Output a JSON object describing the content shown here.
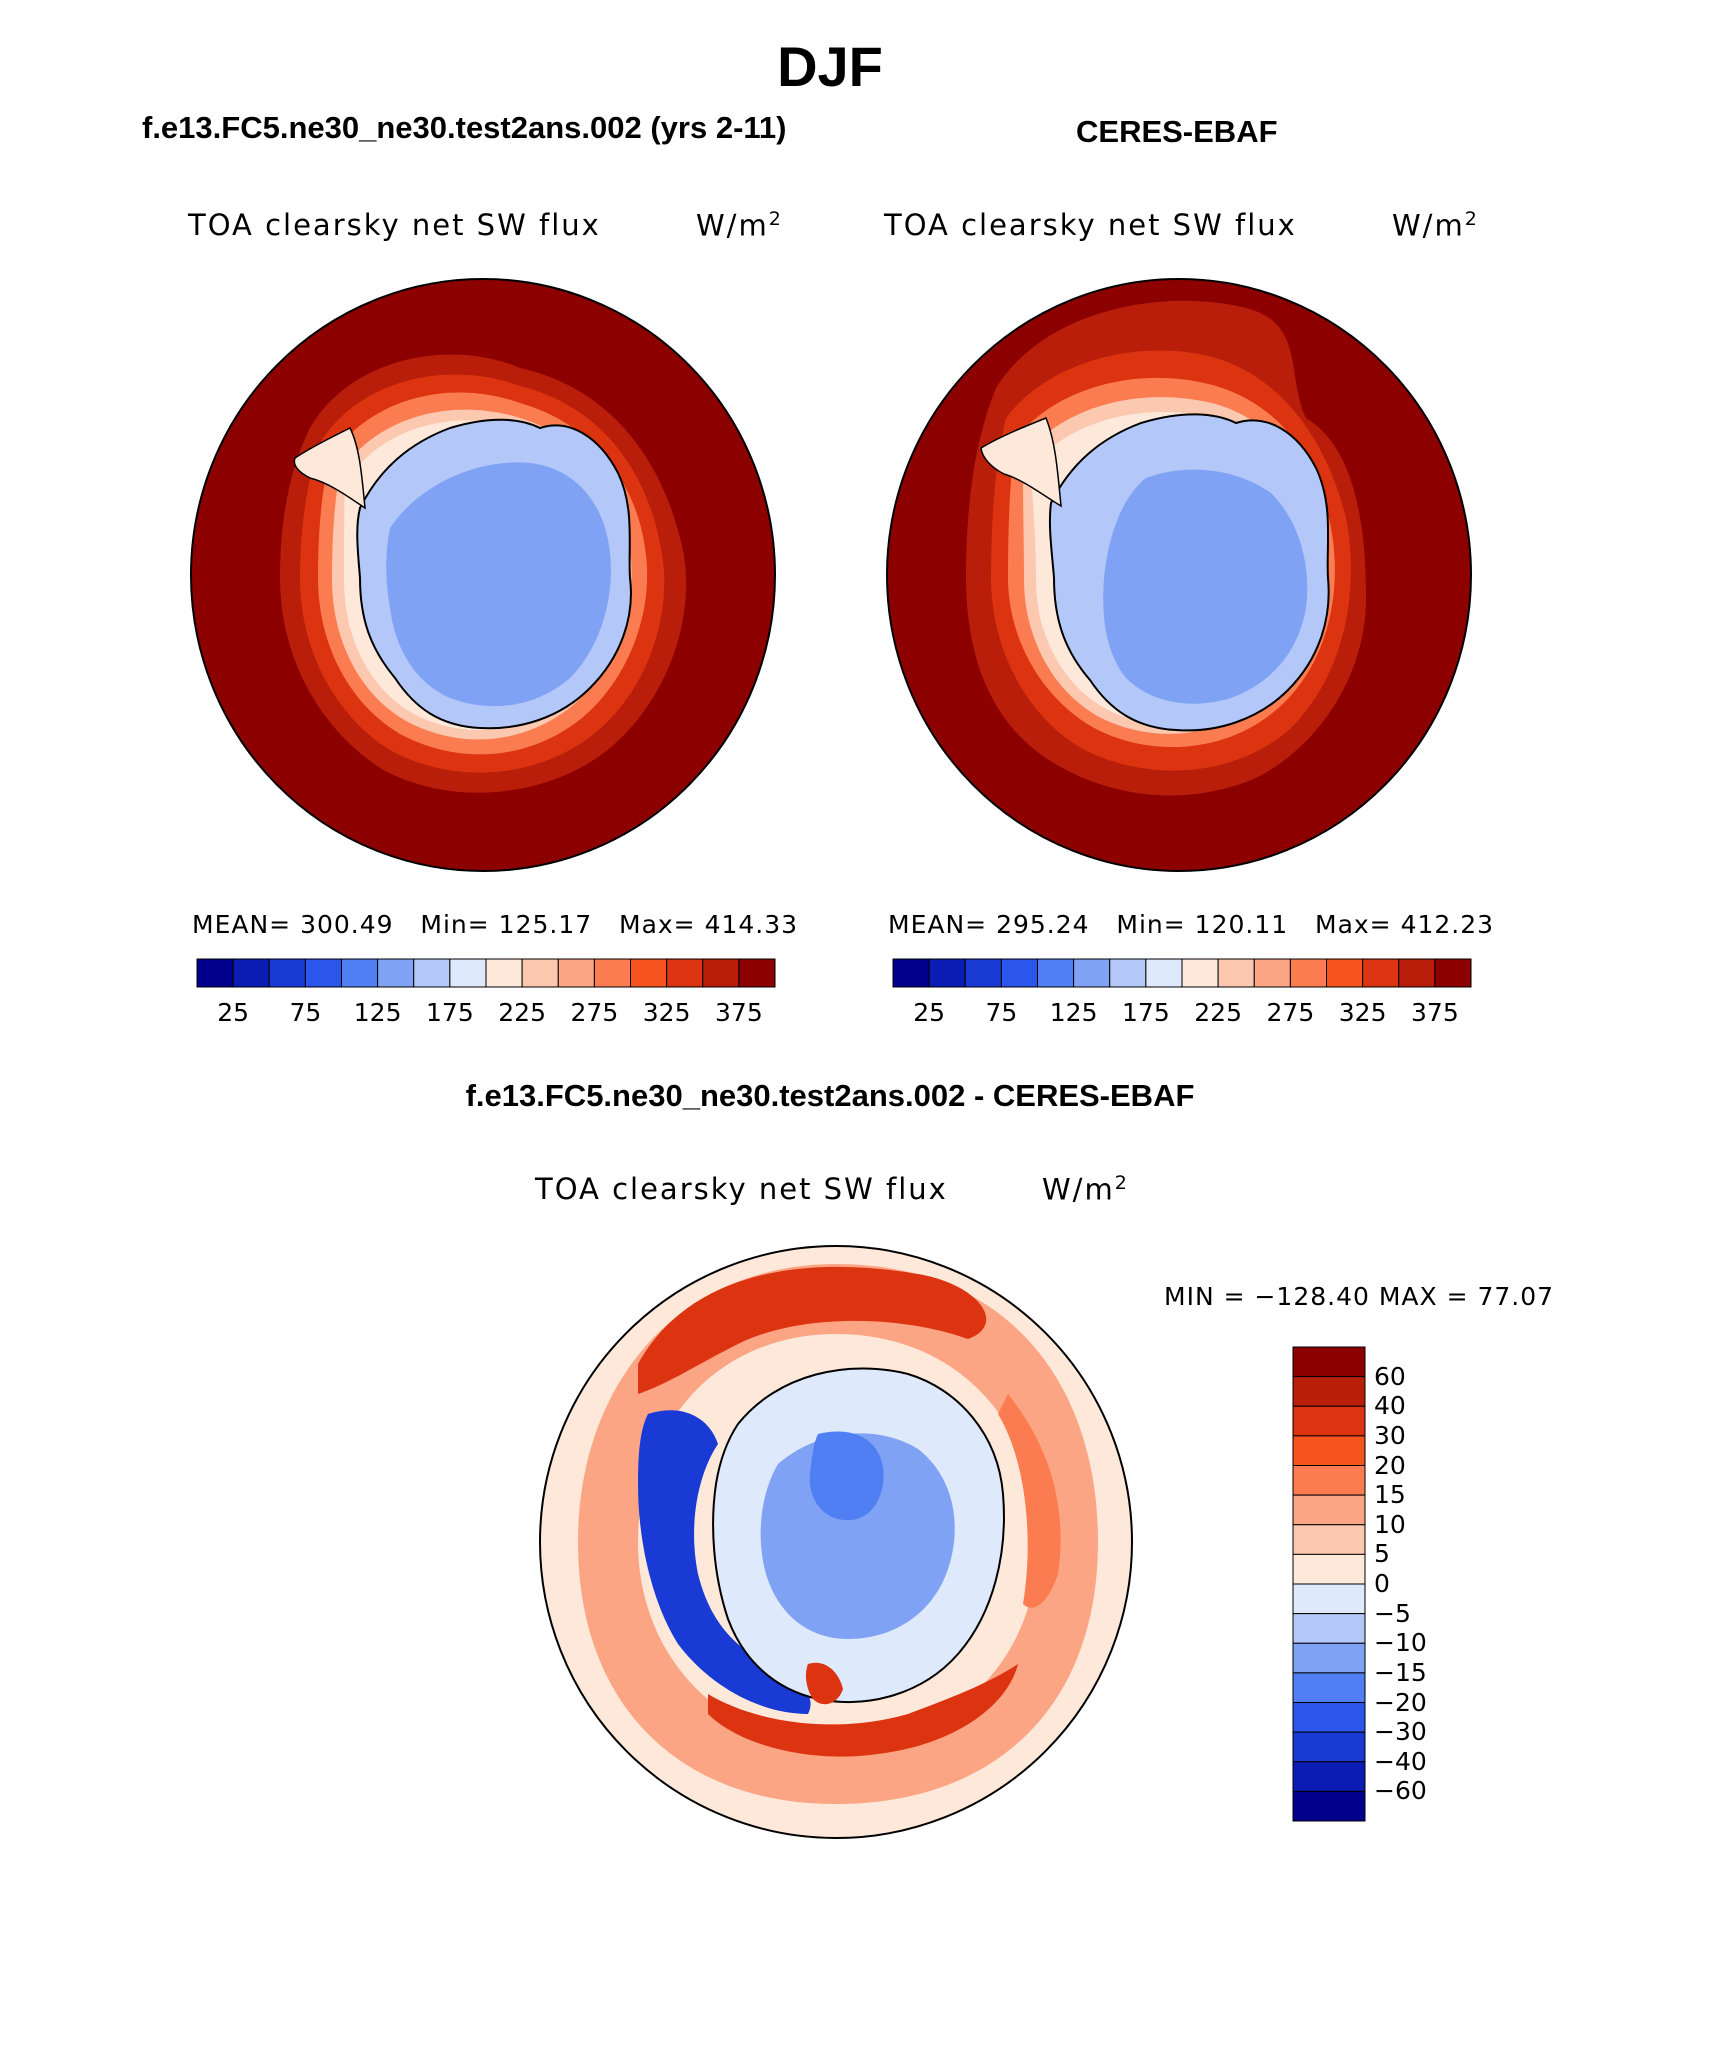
{
  "title": "DJF",
  "panels": [
    {
      "id": "model",
      "case": "f.e13.FC5.ne30_ne30.test2ans.002 (yrs 2-11)",
      "variable": "TOA clearsky net SW flux",
      "units_base": "W/m",
      "units_exp": "2",
      "stats": {
        "mean_label": "MEAN=",
        "mean": "300.49",
        "min_label": "Min=",
        "min": "125.17",
        "max_label": "Max=",
        "max": "414.33"
      }
    },
    {
      "id": "obs",
      "case": "CERES-EBAF",
      "variable": "TOA clearsky net SW flux",
      "units_base": "W/m",
      "units_exp": "2",
      "stats": {
        "mean_label": "MEAN=",
        "mean": "295.24",
        "min_label": "Min=",
        "min": "120.11",
        "max_label": "Max=",
        "max": "412.23"
      }
    }
  ],
  "diff": {
    "case": "f.e13.FC5.ne30_ne30.test2ans.002 - CERES-EBAF",
    "variable": "TOA clearsky net SW flux",
    "units_base": "W/m",
    "units_exp": "2",
    "minmax_text": "MIN = −128.40 MAX =   77.07"
  },
  "colorbar_main": {
    "colors": [
      "#00008c",
      "#0a1cb4",
      "#1a3ad6",
      "#2a56ec",
      "#4f7ff2",
      "#7fa2f5",
      "#b3c8f8",
      "#deeafc",
      "#fde8da",
      "#fcc8b0",
      "#fba585",
      "#fb7c50",
      "#f5541f",
      "#dc3410",
      "#b81e0a",
      "#8c0000"
    ],
    "tick_labels": [
      "25",
      "75",
      "125",
      "175",
      "225",
      "275",
      "325",
      "375"
    ]
  },
  "colorbar_diff": {
    "colors": [
      "#8c0000",
      "#b81e0a",
      "#dc3410",
      "#f5541f",
      "#fb7c50",
      "#fba585",
      "#fcc8b0",
      "#fde8da",
      "#deeafc",
      "#b3c8f8",
      "#7fa2f5",
      "#4f7ff2",
      "#2a56ec",
      "#1a3ad6",
      "#0a1cb4",
      "#00008c"
    ],
    "tick_labels": [
      "60",
      "40",
      "30",
      "20",
      "15",
      "10",
      "5",
      "0",
      "−5",
      "−10",
      "−15",
      "−20",
      "−30",
      "−40",
      "−60"
    ]
  }
}
